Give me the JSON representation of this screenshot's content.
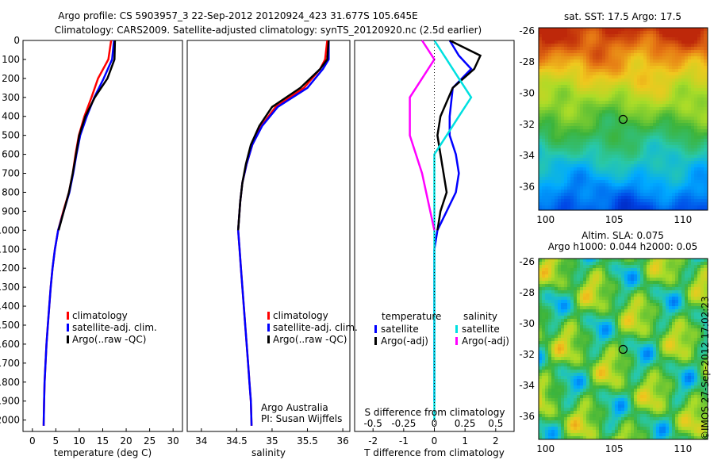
{
  "figure": {
    "title_line1": "Argo profile: CS 5903957_3 22-Sep-2012 20120924_423 31.677S 105.645E",
    "title_line2": "Climatology: CARS2009. Satellite-adjusted climatology: synTS_20120920.nc (2.5d earlier)",
    "side_stamp": "©IMOS 27-Sep-2012 17:02:23"
  },
  "colors": {
    "climatology": "#ff0000",
    "satellite": "#0000ff",
    "argo": "#000000",
    "sat_sal": "#00e0e0",
    "argo_sal": "#ff00ff"
  },
  "chart_data": [
    {
      "type": "line",
      "id": "temperature",
      "xlabel": "temperature (deg C)",
      "xlim": [
        -2,
        32
      ],
      "ylim": [
        0,
        2060
      ],
      "invert_y": true,
      "xticks": [
        0,
        5,
        10,
        15,
        20,
        25,
        30
      ],
      "yticks": [
        0,
        100,
        200,
        300,
        400,
        500,
        600,
        700,
        800,
        900,
        1000,
        1100,
        1200,
        1300,
        1400,
        1500,
        1600,
        1700,
        1800,
        1900,
        2000
      ],
      "legend": [
        "climatology",
        "satellite-adj. clim.",
        "Argo(..raw -QC)"
      ],
      "series": [
        {
          "name": "climatology",
          "color": "#ff0000",
          "x": [
            16.8,
            16.2,
            14.0,
            12.6,
            11.1,
            9.9,
            9.2,
            8.6,
            7.8,
            6.6,
            5.5,
            4.8,
            4.3,
            3.9,
            3.6,
            3.3,
            3.0,
            2.8,
            2.6,
            2.5,
            2.4
          ],
          "y": [
            0,
            100,
            200,
            300,
            400,
            500,
            600,
            700,
            800,
            900,
            1000,
            1100,
            1200,
            1300,
            1400,
            1500,
            1600,
            1700,
            1800,
            1900,
            2030
          ]
        },
        {
          "name": "satellite-adj. clim.",
          "color": "#0000ff",
          "x": [
            17.4,
            17.0,
            15.2,
            13.2,
            11.6,
            10.2,
            9.4,
            8.7,
            7.9,
            6.7,
            5.5,
            4.8,
            4.3,
            3.9,
            3.6,
            3.3,
            3.0,
            2.8,
            2.6,
            2.5,
            2.4
          ],
          "y": [
            0,
            100,
            200,
            300,
            400,
            500,
            600,
            700,
            800,
            900,
            1000,
            1100,
            1200,
            1300,
            1400,
            1500,
            1600,
            1700,
            1800,
            1900,
            2030
          ]
        },
        {
          "name": "Argo(..raw -QC)",
          "color": "#000000",
          "x": [
            17.6,
            17.5,
            16.0,
            13.3,
            11.3,
            10.0,
            9.3,
            8.6,
            7.8,
            6.7,
            5.6
          ],
          "y": [
            0,
            100,
            200,
            300,
            400,
            500,
            600,
            700,
            800,
            900,
            1000
          ]
        }
      ]
    },
    {
      "type": "line",
      "id": "salinity",
      "xlabel": "salinity",
      "xlim": [
        33.8,
        36.1
      ],
      "ylim": [
        0,
        2060
      ],
      "invert_y": true,
      "xticks": [
        34,
        34.5,
        35,
        35.5,
        36
      ],
      "legend": [
        "climatology",
        "satellite-adj. clim.",
        "Argo(..raw -QC)"
      ],
      "annotations": [
        "Argo Australia",
        "PI: Susan Wijffels"
      ],
      "series": [
        {
          "name": "climatology",
          "color": "#ff0000",
          "x": [
            35.78,
            35.75,
            35.68,
            35.45,
            35.05,
            34.85,
            34.72,
            34.64,
            34.58,
            34.55,
            34.52,
            34.54,
            34.56,
            34.58,
            34.6,
            34.62,
            34.64,
            34.66,
            34.68,
            34.7,
            34.71
          ],
          "y": [
            0,
            100,
            150,
            250,
            350,
            450,
            550,
            650,
            750,
            850,
            1000,
            1100,
            1200,
            1300,
            1400,
            1500,
            1600,
            1700,
            1800,
            1900,
            2030
          ]
        },
        {
          "name": "satellite-adj. clim.",
          "color": "#0000ff",
          "x": [
            35.8,
            35.8,
            35.72,
            35.5,
            35.08,
            34.86,
            34.72,
            34.64,
            34.58,
            34.55,
            34.52,
            34.54,
            34.56,
            34.58,
            34.6,
            34.62,
            34.64,
            34.66,
            34.68,
            34.7,
            34.71
          ],
          "y": [
            0,
            100,
            150,
            250,
            350,
            450,
            550,
            650,
            750,
            850,
            1000,
            1100,
            1200,
            1300,
            1400,
            1500,
            1600,
            1700,
            1800,
            1900,
            2030
          ]
        },
        {
          "name": "Argo(..raw -QC)",
          "color": "#000000",
          "x": [
            35.8,
            35.78,
            35.68,
            35.4,
            35.0,
            34.82,
            34.7,
            34.63,
            34.58,
            34.55,
            34.52
          ],
          "y": [
            0,
            100,
            150,
            250,
            350,
            450,
            550,
            650,
            750,
            850,
            1000
          ]
        }
      ]
    },
    {
      "type": "line",
      "id": "difference",
      "xlabel": "T difference from climatology",
      "x2label": "S difference from climatology",
      "xlim": [
        -2.6,
        2.6
      ],
      "ylim": [
        0,
        2060
      ],
      "invert_y": true,
      "xticks": [
        -2,
        -1,
        0,
        1,
        2
      ],
      "xtick_labels": [
        "-2",
        "-1",
        "0",
        "1",
        "2"
      ],
      "x2ticks": [
        -0.5,
        -0.25,
        0,
        0.25,
        0.5
      ],
      "x2tick_labels": [
        "-0.5",
        "-0.25",
        "0",
        "0.25",
        "0.5"
      ],
      "legend_temperature": {
        "title": "temperature",
        "items": [
          "satellite",
          "Argo(-adj)"
        ]
      },
      "legend_salinity": {
        "title": "salinity",
        "items": [
          "satellite",
          "Argo(-adj)"
        ]
      },
      "series": [
        {
          "name": "T satellite",
          "color": "#0000ff",
          "x": [
            0.5,
            0.8,
            1.2,
            0.6,
            0.5,
            0.5,
            0.7,
            0.8,
            0.7,
            0.4,
            0.1,
            0.0,
            0.0,
            0.0,
            0.0,
            0.0,
            0.0,
            0.0
          ],
          "y": [
            0,
            80,
            150,
            250,
            400,
            500,
            600,
            700,
            800,
            900,
            1000,
            1100,
            1300,
            1500,
            1600,
            1700,
            1800,
            1900
          ]
        },
        {
          "name": "T Argo(-adj)",
          "color": "#000000",
          "x": [
            0.5,
            1.5,
            1.3,
            0.6,
            0.2,
            0.1,
            0.2,
            0.3,
            0.4,
            0.2,
            0.1
          ],
          "y": [
            0,
            80,
            150,
            250,
            400,
            500,
            600,
            700,
            800,
            900,
            1000
          ]
        },
        {
          "name": "S satellite",
          "color": "#00e0e0",
          "x": [
            0.0,
            0.1,
            0.2,
            0.3,
            0.2,
            0.1,
            0.0,
            0.0,
            0.0,
            0.0,
            0.0,
            0.0,
            0.0,
            0.0,
            0.0,
            0.0,
            0.0
          ],
          "y": [
            0,
            100,
            200,
            300,
            400,
            500,
            600,
            800,
            1000,
            1100,
            1300,
            1500,
            1600,
            1700,
            1800,
            1900,
            2000
          ]
        },
        {
          "name": "S Argo(-adj)",
          "color": "#ff00ff",
          "x": [
            -0.1,
            0.0,
            -0.1,
            -0.2,
            -0.2,
            -0.1,
            0.0
          ],
          "y": [
            0,
            100,
            200,
            300,
            500,
            700,
            1000
          ]
        }
      ]
    },
    {
      "type": "heatmap",
      "id": "sst_map",
      "title": "sat. SST: 17.5 Argo: 17.5",
      "xlim": [
        99.5,
        111.8
      ],
      "ylim": [
        -37.5,
        -25.8
      ],
      "xticks": [
        100,
        105,
        110
      ],
      "yticks": [
        -26,
        -28,
        -30,
        -32,
        -34,
        -36
      ],
      "marker": {
        "lon": 105.645,
        "lat": -31.677
      }
    },
    {
      "type": "heatmap",
      "id": "sla_map",
      "title": "Altim. SLA: 0.075",
      "subtitle": "Argo h1000: 0.044 h2000: 0.05",
      "xlim": [
        99.5,
        111.8
      ],
      "ylim": [
        -37.5,
        -25.8
      ],
      "xticks": [
        100,
        105,
        110
      ],
      "yticks": [
        -26,
        -28,
        -30,
        -32,
        -34,
        -36
      ],
      "marker": {
        "lon": 105.645,
        "lat": -31.677
      }
    }
  ]
}
